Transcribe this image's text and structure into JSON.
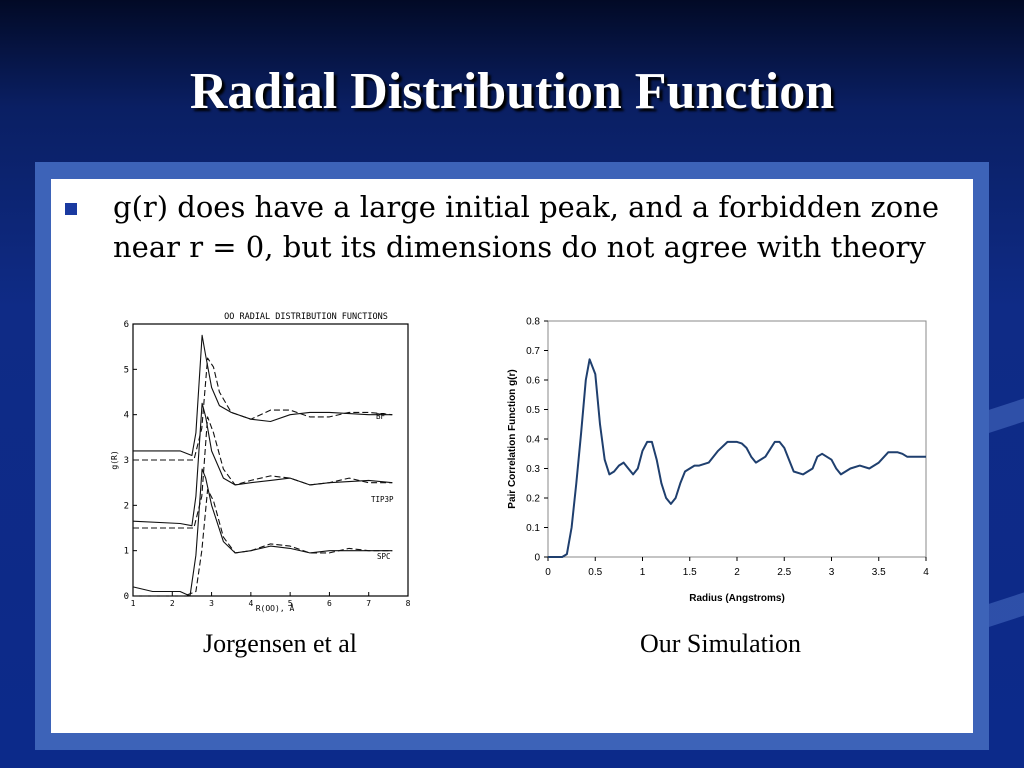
{
  "slide": {
    "title": "Radial Distribution Function",
    "bullet": "g(r) does have a large initial peak, and a forbidden zone near r = 0, but its dimensions do not agree with theory",
    "captions": {
      "left": "Jorgensen et al",
      "right": "Our Simulation"
    }
  },
  "colors": {
    "title": "#ffffff",
    "frame": "#3d63b8",
    "bullet": "#1a3aa0",
    "curve": "#1f3f6e"
  },
  "chart_data": [
    {
      "type": "line",
      "title": "OO RADIAL DISTRIBUTION FUNCTIONS",
      "xlabel": "R(OO), Å",
      "ylabel": "g(R)",
      "xlim": [
        1,
        8
      ],
      "ylim": [
        0,
        6
      ],
      "x_ticks": [
        "1",
        "2",
        "3",
        "4",
        "5",
        "6",
        "7",
        "8"
      ],
      "y_ticks": [
        "0",
        "1",
        "2",
        "3",
        "4",
        "5",
        "6"
      ],
      "series_labels": [
        "BF",
        "TIP3P",
        "SPC"
      ],
      "grid": false,
      "style": "scanned line-art, solid vs dashed curves per model",
      "series": [
        {
          "name": "BF",
          "style": "solid",
          "x": [
            1.0,
            2.2,
            2.5,
            2.6,
            2.76,
            2.85,
            3.0,
            3.2,
            3.5,
            4.0,
            4.5,
            5.0,
            5.5,
            6.0,
            7.0,
            7.6
          ],
          "y": [
            3.2,
            3.2,
            3.1,
            3.6,
            5.75,
            5.3,
            4.6,
            4.2,
            4.05,
            3.9,
            3.85,
            4.0,
            4.05,
            4.05,
            4.0,
            4.0
          ]
        },
        {
          "name": "BF",
          "style": "dashed",
          "x": [
            1.0,
            2.3,
            2.55,
            2.75,
            2.9,
            3.05,
            3.2,
            3.5,
            4.0,
            4.5,
            5.0,
            5.5,
            6.0,
            6.5,
            7.0,
            7.6
          ],
          "y": [
            3.0,
            3.0,
            3.0,
            3.7,
            5.25,
            5.05,
            4.5,
            4.05,
            3.9,
            4.1,
            4.1,
            3.95,
            3.95,
            4.05,
            4.05,
            4.0
          ]
        },
        {
          "name": "TIP3P",
          "style": "solid",
          "x": [
            1.0,
            2.2,
            2.5,
            2.6,
            2.76,
            2.85,
            3.0,
            3.3,
            3.6,
            4.0,
            4.5,
            5.0,
            5.5,
            6.0,
            7.0,
            7.6
          ],
          "y": [
            1.65,
            1.6,
            1.55,
            2.2,
            4.25,
            3.95,
            3.2,
            2.6,
            2.45,
            2.5,
            2.55,
            2.6,
            2.45,
            2.5,
            2.55,
            2.5
          ]
        },
        {
          "name": "TIP3P",
          "style": "dashed",
          "x": [
            1.0,
            2.3,
            2.55,
            2.75,
            2.9,
            3.05,
            3.3,
            3.6,
            4.0,
            4.5,
            5.0,
            5.5,
            6.0,
            6.5,
            7.0,
            7.6
          ],
          "y": [
            1.5,
            1.5,
            1.5,
            2.2,
            3.95,
            3.6,
            2.8,
            2.45,
            2.55,
            2.65,
            2.6,
            2.45,
            2.5,
            2.6,
            2.5,
            2.5
          ]
        },
        {
          "name": "SPC",
          "style": "solid",
          "x": [
            1.0,
            1.5,
            2.2,
            2.45,
            2.6,
            2.76,
            2.85,
            3.0,
            3.3,
            3.6,
            4.0,
            4.5,
            5.0,
            5.5,
            6.0,
            7.0,
            7.6
          ],
          "y": [
            0.2,
            0.1,
            0.1,
            0.0,
            0.9,
            2.8,
            2.6,
            2.0,
            1.2,
            0.95,
            1.0,
            1.1,
            1.05,
            0.95,
            1.0,
            1.0,
            1.0
          ]
        },
        {
          "name": "SPC",
          "style": "dashed",
          "x": [
            1.0,
            2.3,
            2.6,
            2.75,
            2.9,
            3.05,
            3.3,
            3.6,
            4.0,
            4.5,
            5.0,
            5.5,
            6.0,
            6.5,
            7.0,
            7.6
          ],
          "y": [
            0.0,
            0.0,
            0.1,
            1.0,
            2.35,
            2.1,
            1.3,
            0.95,
            1.0,
            1.15,
            1.1,
            0.95,
            0.95,
            1.05,
            1.0,
            1.0
          ]
        }
      ]
    },
    {
      "type": "line",
      "title": "",
      "xlabel": "Radius (Angstroms)",
      "ylabel": "Pair Correlation Function g(r)",
      "xlim": [
        0,
        4
      ],
      "ylim": [
        0,
        0.8
      ],
      "x_ticks": [
        "0",
        "0.5",
        "1",
        "1.5",
        "2",
        "2.5",
        "3",
        "3.5",
        "4"
      ],
      "y_ticks": [
        "0",
        "0.1",
        "0.2",
        "0.3",
        "0.4",
        "0.5",
        "0.6",
        "0.7",
        "0.8"
      ],
      "grid": false,
      "series": [
        {
          "name": "",
          "x": [
            0,
            0.15,
            0.2,
            0.25,
            0.3,
            0.35,
            0.4,
            0.44,
            0.5,
            0.55,
            0.6,
            0.65,
            0.7,
            0.75,
            0.8,
            0.85,
            0.9,
            0.95,
            1.0,
            1.05,
            1.1,
            1.15,
            1.2,
            1.25,
            1.3,
            1.35,
            1.4,
            1.45,
            1.5,
            1.55,
            1.6,
            1.7,
            1.8,
            1.9,
            2.0,
            2.05,
            2.1,
            2.15,
            2.2,
            2.3,
            2.4,
            2.45,
            2.5,
            2.55,
            2.6,
            2.7,
            2.8,
            2.85,
            2.9,
            3.0,
            3.05,
            3.1,
            3.2,
            3.3,
            3.4,
            3.5,
            3.6,
            3.7,
            3.75,
            3.8,
            3.9,
            4.0
          ],
          "y": [
            0,
            0,
            0.01,
            0.1,
            0.25,
            0.42,
            0.6,
            0.67,
            0.62,
            0.45,
            0.33,
            0.28,
            0.29,
            0.31,
            0.32,
            0.3,
            0.28,
            0.3,
            0.36,
            0.39,
            0.39,
            0.33,
            0.25,
            0.2,
            0.18,
            0.2,
            0.25,
            0.29,
            0.3,
            0.31,
            0.31,
            0.32,
            0.36,
            0.39,
            0.39,
            0.385,
            0.37,
            0.34,
            0.32,
            0.34,
            0.39,
            0.39,
            0.37,
            0.33,
            0.29,
            0.28,
            0.3,
            0.34,
            0.35,
            0.33,
            0.3,
            0.28,
            0.3,
            0.31,
            0.3,
            0.32,
            0.355,
            0.355,
            0.35,
            0.34,
            0.34,
            0.34
          ]
        }
      ]
    }
  ]
}
